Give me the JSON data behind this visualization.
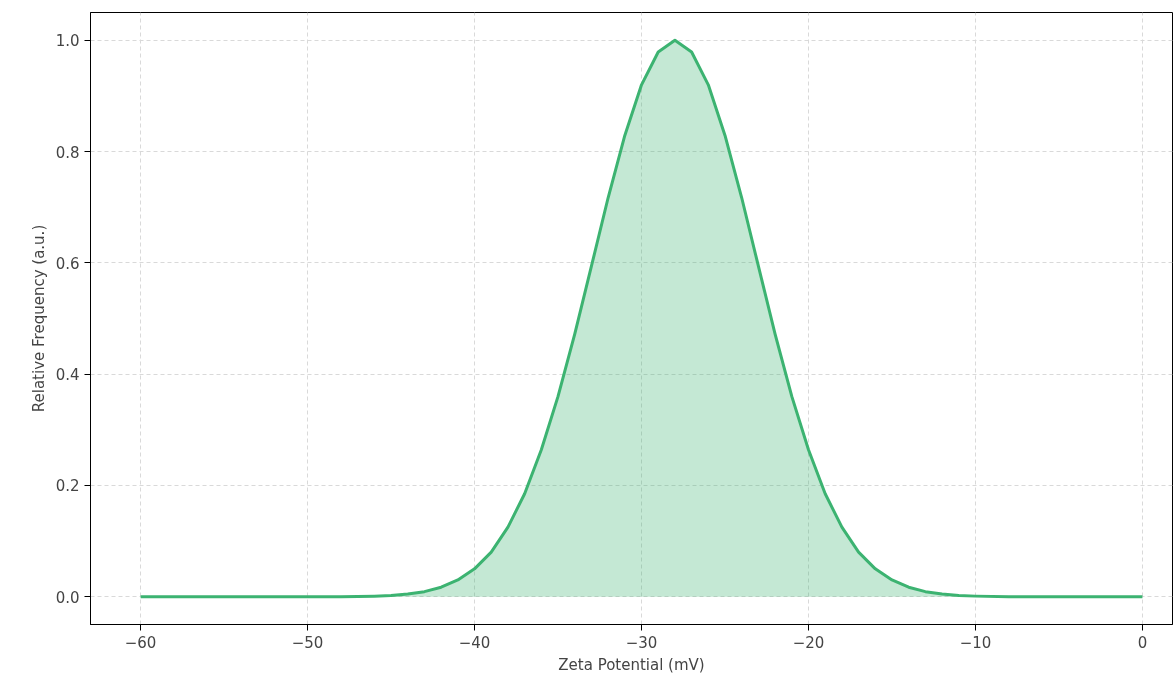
{
  "chart_data": {
    "type": "area",
    "xlabel": "Zeta Potential (mV)",
    "ylabel": "Relative Frequency (a.u.)",
    "x": [
      -60,
      -55,
      -50,
      -48,
      -46,
      -45,
      -44,
      -43,
      -42,
      -41,
      -40,
      -39,
      -38,
      -37,
      -36,
      -35,
      -34,
      -33,
      -32,
      -31,
      -30,
      -29,
      -28,
      -27,
      -26,
      -25,
      -24,
      -23,
      -22,
      -21,
      -20,
      -19,
      -18,
      -17,
      -16,
      -15,
      -14,
      -13,
      -12,
      -11,
      -10,
      -8,
      -5,
      0
    ],
    "series": [
      {
        "color": "#3cb371",
        "values": [
          0,
          0,
          0,
          0,
          0.001,
          0.002,
          0.005,
          0.009,
          0.017,
          0.03,
          0.05,
          0.08,
          0.125,
          0.185,
          0.264,
          0.36,
          0.472,
          0.594,
          0.717,
          0.829,
          0.92,
          0.979,
          1,
          0.979,
          0.92,
          0.829,
          0.717,
          0.594,
          0.472,
          0.36,
          0.264,
          0.185,
          0.125,
          0.08,
          0.05,
          0.03,
          0.017,
          0.009,
          0.005,
          0.002,
          0.001,
          0,
          0,
          0
        ]
      }
    ],
    "xlim": [
      -63,
      1.8
    ],
    "ylim": [
      -0.05,
      1.05
    ],
    "xticks": [
      {
        "value": -60,
        "label": "−60"
      },
      {
        "value": -50,
        "label": "−50"
      },
      {
        "value": -40,
        "label": "−40"
      },
      {
        "value": -30,
        "label": "−30"
      },
      {
        "value": -20,
        "label": "−20"
      },
      {
        "value": -10,
        "label": "−10"
      },
      0
    ],
    "yticks": [
      {
        "value": 0,
        "label": "0.0"
      },
      {
        "value": 0.2,
        "label": "0.2"
      },
      {
        "value": 0.4,
        "label": "0.4"
      },
      {
        "value": 0.6,
        "label": "0.6"
      },
      {
        "value": 0.8,
        "label": "0.8"
      },
      {
        "value": 1,
        "label": "1.0"
      }
    ],
    "grid": true
  }
}
